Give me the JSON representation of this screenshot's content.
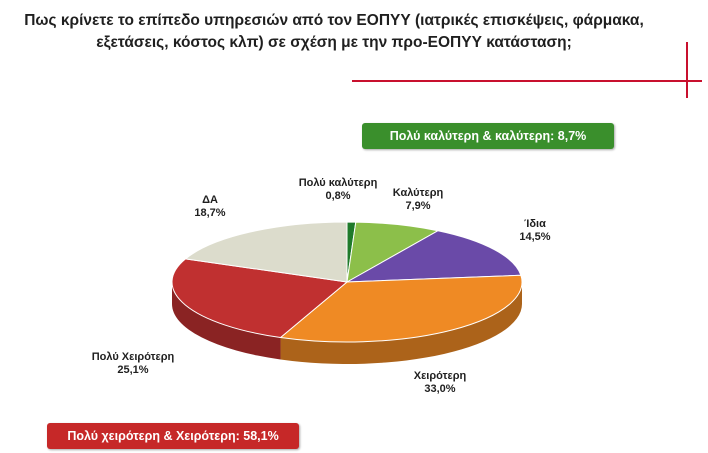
{
  "title_lines": [
    "Πως κρίνετε το επίπεδο υπηρεσιών από τον ΕΟΠΥΥ (ιατρικές επισκέψεις, φάρμακα,",
    "εξετάσεις, κόστος κλπ) σε σχέση με την προ-ΕΟΠΥΥ κατάσταση;"
  ],
  "callouts": {
    "better": {
      "text": "Πολύ καλύτερη & καλύτερη: 8,7%",
      "color": "#3a8f2c"
    },
    "worse": {
      "text": "Πολύ χειρότερη & Χειρότερη: 58,1%",
      "color": "#c62828"
    }
  },
  "accent_color": "#c8102e",
  "chart_data": {
    "type": "pie",
    "style": "3d",
    "slices": [
      {
        "label": "Πολύ καλύτερη",
        "value": 0.8,
        "value_text": "0,8%",
        "color": "#1f7a2a"
      },
      {
        "label": "Καλύτερη",
        "value": 7.9,
        "value_text": "7,9%",
        "color": "#8cbf4a"
      },
      {
        "label": "Ίδια",
        "value": 14.5,
        "value_text": "14,5%",
        "color": "#6a4aa8"
      },
      {
        "label": "Χειρότερη",
        "value": 33.0,
        "value_text": "33,0%",
        "color": "#ef8a24"
      },
      {
        "label": "Πολύ Χειρότερη",
        "value": 25.1,
        "value_text": "25,1%",
        "color": "#c03030"
      },
      {
        "label": "ΔΑ",
        "value": 18.7,
        "value_text": "18,7%",
        "color": "#dcdccc"
      }
    ]
  }
}
